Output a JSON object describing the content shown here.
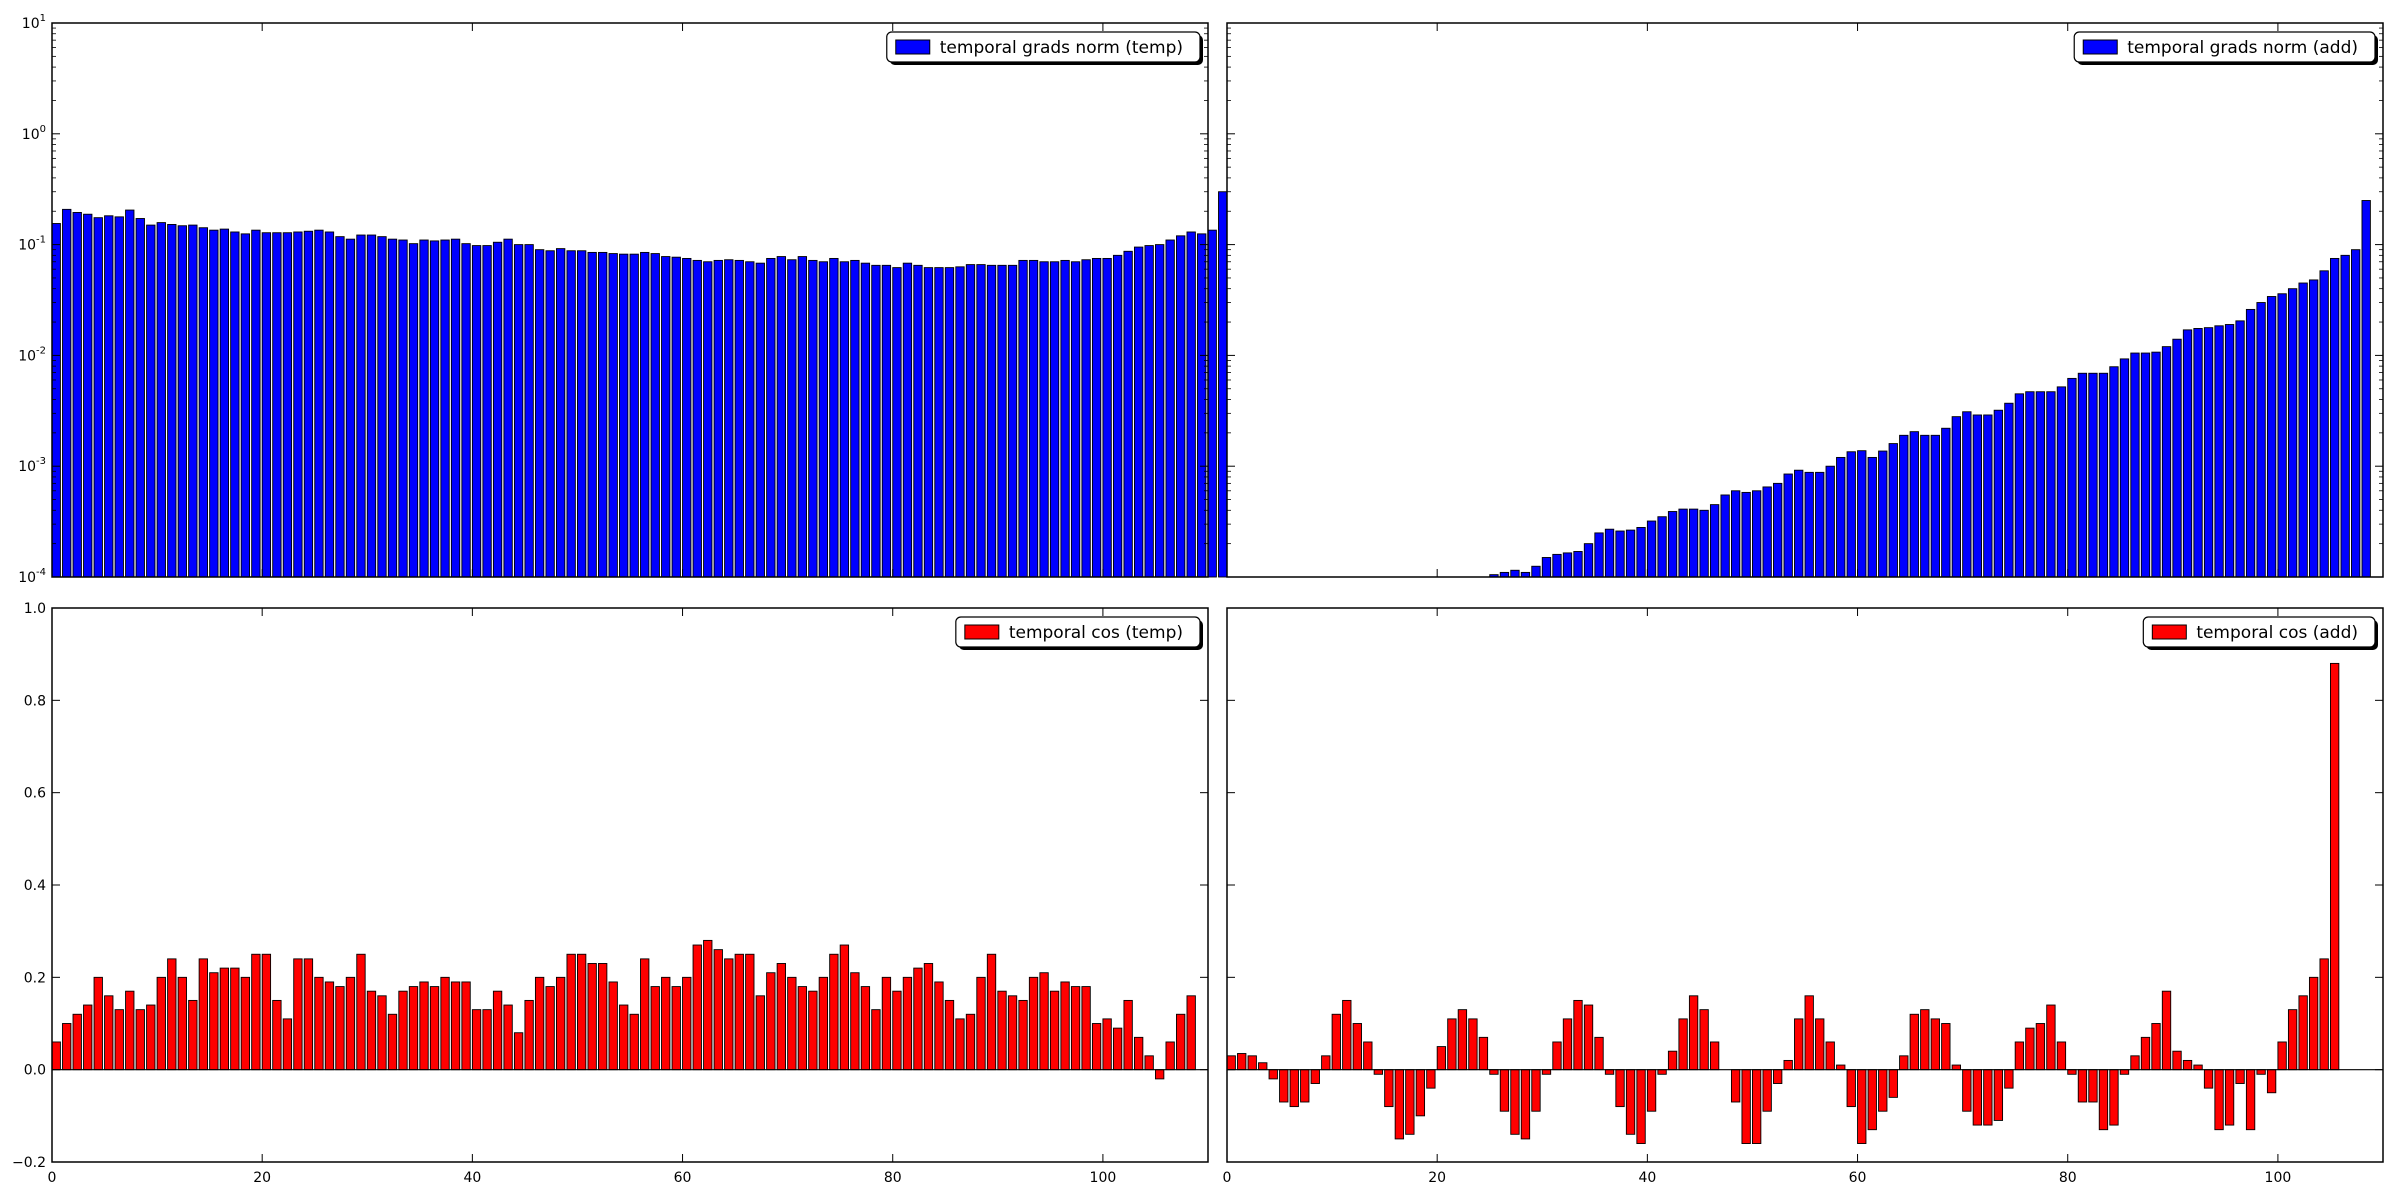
{
  "chart_data": [
    {
      "type": "bar",
      "yscale": "log",
      "ylim": [
        0.0001,
        10
      ],
      "xlim": [
        0,
        110
      ],
      "color": "#0000ff",
      "x_ticks": [],
      "y_ticks": [
        {
          "base": "10",
          "exp": "-4"
        },
        {
          "base": "10",
          "exp": "-3"
        },
        {
          "base": "10",
          "exp": "-2"
        },
        {
          "base": "10",
          "exp": "-1"
        },
        {
          "base": "10",
          "exp": "0"
        },
        {
          "base": "10",
          "exp": "1"
        }
      ],
      "legend": {
        "position": "top-right"
      },
      "series": [
        {
          "name": "temporal grads norm (temp)",
          "values": [
            0.155,
            0.208,
            0.195,
            0.188,
            0.175,
            0.182,
            0.178,
            0.205,
            0.172,
            0.15,
            0.158,
            0.152,
            0.148,
            0.15,
            0.142,
            0.135,
            0.138,
            0.13,
            0.125,
            0.135,
            0.128,
            0.128,
            0.128,
            0.13,
            0.132,
            0.135,
            0.13,
            0.118,
            0.112,
            0.122,
            0.122,
            0.118,
            0.112,
            0.11,
            0.102,
            0.11,
            0.108,
            0.11,
            0.112,
            0.102,
            0.098,
            0.098,
            0.105,
            0.112,
            0.1,
            0.1,
            0.09,
            0.088,
            0.092,
            0.088,
            0.088,
            0.085,
            0.085,
            0.083,
            0.082,
            0.082,
            0.085,
            0.083,
            0.078,
            0.077,
            0.075,
            0.072,
            0.07,
            0.072,
            0.073,
            0.072,
            0.07,
            0.068,
            0.075,
            0.078,
            0.073,
            0.078,
            0.072,
            0.07,
            0.075,
            0.07,
            0.072,
            0.068,
            0.065,
            0.065,
            0.062,
            0.068,
            0.065,
            0.062,
            0.062,
            0.062,
            0.063,
            0.066,
            0.066,
            0.065,
            0.065,
            0.065,
            0.072,
            0.072,
            0.07,
            0.07,
            0.072,
            0.07,
            0.073,
            0.075,
            0.075,
            0.08,
            0.087,
            0.095,
            0.098,
            0.1,
            0.11,
            0.12,
            0.13,
            0.125,
            0.135,
            0.3
          ]
        }
      ]
    },
    {
      "type": "bar",
      "yscale": "log",
      "ylim": [
        0.0001,
        10
      ],
      "xlim": [
        0,
        110
      ],
      "color": "#0000ff",
      "x_ticks": [],
      "y_ticks": [],
      "legend": {
        "position": "top-right"
      },
      "series": [
        {
          "name": "temporal grads norm (add)",
          "values": [
            0.0001,
            0.0001,
            0.0001,
            0.0001,
            0.0001,
            0.0001,
            0.0001,
            0.0001,
            0.0001,
            0.0001,
            0.0001,
            0.0001,
            0.0001,
            0.0001,
            0.0001,
            0.0001,
            0.0001,
            0.0001,
            0.0001,
            0.0001,
            0.0001,
            0.0001,
            0.0001,
            0.0001,
            0.0001,
            0.000105,
            0.00011,
            0.000115,
            0.00011,
            0.000125,
            0.00015,
            0.00016,
            0.000165,
            0.00017,
            0.0002,
            0.00025,
            0.00027,
            0.00026,
            0.000265,
            0.00028,
            0.00032,
            0.00035,
            0.00039,
            0.00041,
            0.00041,
            0.0004,
            0.00045,
            0.00055,
            0.0006,
            0.00058,
            0.0006,
            0.00065,
            0.0007,
            0.00085,
            0.00092,
            0.00088,
            0.00088,
            0.001,
            0.0012,
            0.00135,
            0.00138,
            0.0012,
            0.00137,
            0.0016,
            0.0019,
            0.00205,
            0.0019,
            0.0019,
            0.0022,
            0.0028,
            0.0031,
            0.0029,
            0.0029,
            0.0032,
            0.0037,
            0.0045,
            0.0047,
            0.0047,
            0.0047,
            0.0052,
            0.0062,
            0.0069,
            0.0069,
            0.0069,
            0.0079,
            0.0093,
            0.0105,
            0.0105,
            0.0107,
            0.012,
            0.014,
            0.017,
            0.0175,
            0.0178,
            0.0185,
            0.019,
            0.0205,
            0.026,
            0.03,
            0.034,
            0.036,
            0.04,
            0.045,
            0.048,
            0.058,
            0.075,
            0.08,
            0.09,
            0.25
          ]
        }
      ]
    },
    {
      "type": "bar",
      "yscale": "linear",
      "ylim": [
        -0.2,
        1.0
      ],
      "xlim": [
        0,
        110
      ],
      "color": "#ff0000",
      "x_ticks": [
        "0",
        "20",
        "40",
        "60",
        "80",
        "100"
      ],
      "y_ticks": [
        "−0.2",
        "0.0",
        "0.2",
        "0.4",
        "0.6",
        "0.8",
        "1.0"
      ],
      "legend": {
        "position": "top-right"
      },
      "series": [
        {
          "name": "temporal cos (temp)",
          "values": [
            0.06,
            0.1,
            0.12,
            0.14,
            0.2,
            0.16,
            0.13,
            0.17,
            0.13,
            0.14,
            0.2,
            0.24,
            0.2,
            0.15,
            0.24,
            0.21,
            0.22,
            0.22,
            0.2,
            0.25,
            0.25,
            0.15,
            0.11,
            0.24,
            0.24,
            0.2,
            0.19,
            0.18,
            0.2,
            0.25,
            0.17,
            0.16,
            0.12,
            0.17,
            0.18,
            0.19,
            0.18,
            0.2,
            0.19,
            0.19,
            0.13,
            0.13,
            0.17,
            0.14,
            0.08,
            0.15,
            0.2,
            0.18,
            0.2,
            0.25,
            0.25,
            0.23,
            0.23,
            0.19,
            0.14,
            0.12,
            0.24,
            0.18,
            0.2,
            0.18,
            0.2,
            0.27,
            0.28,
            0.26,
            0.24,
            0.25,
            0.25,
            0.16,
            0.21,
            0.23,
            0.2,
            0.18,
            0.17,
            0.2,
            0.25,
            0.27,
            0.21,
            0.18,
            0.13,
            0.2,
            0.17,
            0.2,
            0.22,
            0.23,
            0.19,
            0.15,
            0.11,
            0.12,
            0.2,
            0.25,
            0.17,
            0.16,
            0.15,
            0.2,
            0.21,
            0.17,
            0.19,
            0.18,
            0.18,
            0.1,
            0.11,
            0.09,
            0.15,
            0.07,
            0.03,
            -0.02,
            0.06,
            0.12,
            0.16
          ]
        }
      ]
    },
    {
      "type": "bar",
      "yscale": "linear",
      "ylim": [
        -0.2,
        1.0
      ],
      "xlim": [
        0,
        110
      ],
      "color": "#ff0000",
      "x_ticks": [
        "0",
        "20",
        "40",
        "60",
        "80",
        "100"
      ],
      "y_ticks": [],
      "legend": {
        "position": "top-right"
      },
      "series": [
        {
          "name": "temporal cos (add)",
          "values": [
            0.03,
            0.035,
            0.03,
            0.015,
            -0.02,
            -0.07,
            -0.08,
            -0.07,
            -0.03,
            0.03,
            0.12,
            0.15,
            0.1,
            0.06,
            -0.01,
            -0.08,
            -0.15,
            -0.14,
            -0.1,
            -0.04,
            0.05,
            0.11,
            0.13,
            0.11,
            0.07,
            -0.01,
            -0.09,
            -0.14,
            -0.15,
            -0.09,
            -0.01,
            0.06,
            0.11,
            0.15,
            0.14,
            0.07,
            -0.01,
            -0.08,
            -0.14,
            -0.16,
            -0.09,
            -0.01,
            0.04,
            0.11,
            0.16,
            0.13,
            0.06,
            0.0,
            -0.07,
            -0.16,
            -0.16,
            -0.09,
            -0.03,
            0.02,
            0.11,
            0.16,
            0.11,
            0.06,
            0.01,
            -0.08,
            -0.16,
            -0.13,
            -0.09,
            -0.06,
            0.03,
            0.12,
            0.13,
            0.11,
            0.1,
            0.01,
            -0.09,
            -0.12,
            -0.12,
            -0.11,
            -0.04,
            0.06,
            0.09,
            0.1,
            0.14,
            0.06,
            -0.01,
            -0.07,
            -0.07,
            -0.13,
            -0.12,
            -0.01,
            0.03,
            0.07,
            0.1,
            0.17,
            0.04,
            0.02,
            0.01,
            -0.04,
            -0.13,
            -0.12,
            -0.03,
            -0.13,
            -0.01,
            -0.05,
            0.06,
            0.13,
            0.16,
            0.2,
            0.24,
            0.88
          ]
        }
      ]
    }
  ]
}
